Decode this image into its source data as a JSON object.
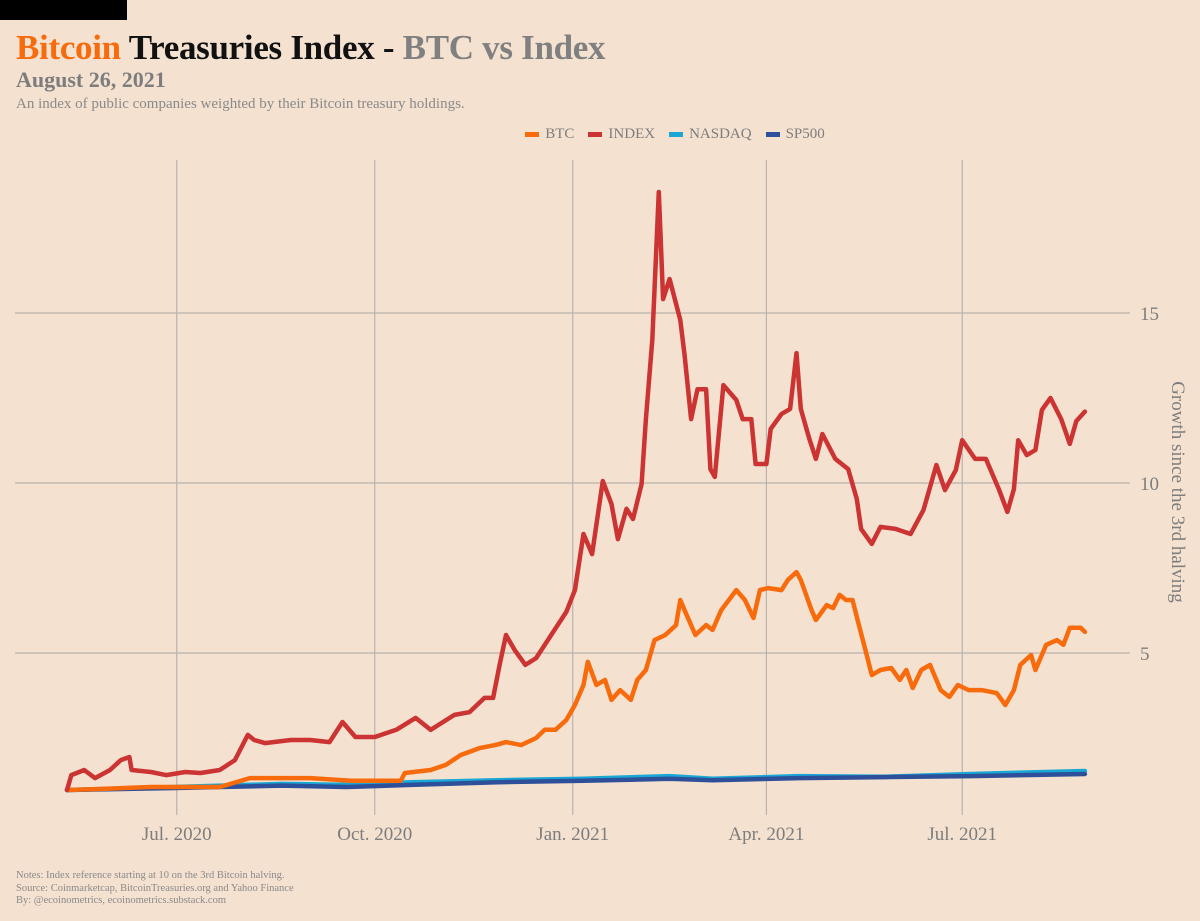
{
  "title": {
    "part1": "Bitcoin",
    "part2": "Treasuries Index -",
    "part3": "BTC vs Index"
  },
  "date": "August 26, 2021",
  "subtitle": "An index of public companies weighted by their Bitcoin treasury holdings.",
  "footer": {
    "notes": "Notes: Index reference starting at 10 on the 3rd Bitcoin halving.",
    "source": "Source: Coinmarketcap, BitcoinTreasuries.org and Yahoo Finance",
    "by": "By: @ecoinometrics, ecoinometrics.substack.com"
  },
  "chart_data": {
    "type": "line",
    "title": "Bitcoin Treasuries Index - BTC vs Index",
    "xlabel": "",
    "ylabel": "Growth since the 3rd halving",
    "x_unit": "days since 3rd halving (2020-05-11)",
    "xlim": [
      -5,
      478
    ],
    "ylim": [
      -0.9,
      19.7
    ],
    "x_ticks": [
      {
        "x": 51,
        "label": "Jul. 2020"
      },
      {
        "x": 143,
        "label": "Oct. 2020"
      },
      {
        "x": 235,
        "label": "Jan. 2021"
      },
      {
        "x": 325,
        "label": "Apr. 2021"
      },
      {
        "x": 416,
        "label": "Jul. 2021"
      }
    ],
    "y_ticks": [
      {
        "y": 5,
        "label": "5"
      },
      {
        "y": 10,
        "label": "10"
      },
      {
        "y": 15,
        "label": "15"
      }
    ],
    "grid": true,
    "legend_position": "top-center",
    "series": [
      {
        "name": "BTC",
        "color": "#f76b0c",
        "x": [
          0,
          15,
          39,
          71,
          85,
          113,
          132,
          155,
          157,
          169,
          176,
          183,
          192,
          199,
          204,
          211,
          218,
          222,
          227,
          232,
          236,
          240,
          242,
          246,
          250,
          253,
          257,
          262,
          265,
          269,
          273,
          278,
          283,
          285,
          287,
          292,
          297,
          300,
          304,
          311,
          315,
          319,
          322,
          326,
          332,
          335,
          339,
          341,
          346,
          348,
          353,
          356,
          359,
          362,
          365,
          368,
          371,
          374,
          378,
          383,
          387,
          390,
          393,
          397,
          401,
          406,
          410,
          414,
          419,
          425,
          432,
          436,
          440,
          443,
          448,
          450,
          455,
          460,
          463,
          466,
          471,
          473
        ],
        "y": [
          0.97,
          1.0,
          1.06,
          1.06,
          1.32,
          1.32,
          1.24,
          1.24,
          1.47,
          1.56,
          1.71,
          2.0,
          2.21,
          2.29,
          2.38,
          2.29,
          2.5,
          2.74,
          2.74,
          3.03,
          3.47,
          4.06,
          4.74,
          4.06,
          4.21,
          3.62,
          3.91,
          3.62,
          4.21,
          4.5,
          5.38,
          5.53,
          5.82,
          6.56,
          6.26,
          5.53,
          5.82,
          5.68,
          6.26,
          6.85,
          6.56,
          6.03,
          6.85,
          6.91,
          6.85,
          7.15,
          7.38,
          7.15,
          6.26,
          5.97,
          6.41,
          6.32,
          6.71,
          6.56,
          6.56,
          5.82,
          5.09,
          4.35,
          4.5,
          4.56,
          4.21,
          4.5,
          3.97,
          4.5,
          4.65,
          3.91,
          3.71,
          4.06,
          3.91,
          3.91,
          3.82,
          3.47,
          3.91,
          4.65,
          4.94,
          4.5,
          5.24,
          5.38,
          5.24,
          5.74,
          5.74,
          5.62
        ]
      },
      {
        "name": "INDEX",
        "color": "#cc3333",
        "x": [
          0,
          2,
          8,
          13,
          20,
          25,
          29,
          30,
          39,
          46,
          55,
          62,
          71,
          78,
          84,
          87,
          92,
          104,
          113,
          122,
          128,
          134,
          143,
          153,
          162,
          169,
          180,
          187,
          194,
          198,
          201,
          204,
          208,
          213,
          218,
          225,
          232,
          236,
          240,
          244,
          249,
          253,
          256,
          260,
          263,
          267,
          269,
          272,
          275,
          277,
          280,
          285,
          287,
          290,
          293,
          297,
          299,
          301,
          305,
          311,
          314,
          318,
          320,
          325,
          327,
          332,
          336,
          339,
          341,
          345,
          348,
          351,
          357,
          363,
          367,
          369,
          374,
          378,
          385,
          392,
          398,
          404,
          408,
          413,
          416,
          422,
          427,
          433,
          437,
          440,
          442,
          446,
          450,
          453,
          457,
          462,
          466,
          469,
          473
        ],
        "y": [
          0.97,
          1.41,
          1.56,
          1.32,
          1.56,
          1.85,
          1.94,
          1.56,
          1.5,
          1.41,
          1.5,
          1.47,
          1.56,
          1.85,
          2.59,
          2.44,
          2.35,
          2.44,
          2.44,
          2.38,
          2.97,
          2.53,
          2.53,
          2.74,
          3.09,
          2.74,
          3.18,
          3.26,
          3.68,
          3.68,
          4.65,
          5.53,
          5.09,
          4.65,
          4.85,
          5.53,
          6.21,
          6.85,
          8.5,
          7.91,
          10.06,
          9.38,
          8.35,
          9.24,
          8.94,
          9.97,
          11.88,
          14.21,
          18.56,
          15.41,
          16.0,
          14.79,
          13.76,
          11.88,
          12.76,
          12.76,
          10.41,
          10.18,
          12.88,
          12.44,
          11.88,
          11.88,
          10.56,
          10.56,
          11.59,
          12.03,
          12.18,
          13.82,
          12.18,
          11.29,
          10.71,
          11.44,
          10.71,
          10.41,
          9.53,
          8.65,
          8.21,
          8.71,
          8.65,
          8.5,
          9.21,
          10.53,
          9.79,
          10.38,
          11.26,
          10.71,
          10.71,
          9.82,
          9.15,
          9.82,
          11.26,
          10.82,
          10.97,
          12.15,
          12.5,
          11.88,
          11.15,
          11.82,
          12.1
        ]
      },
      {
        "name": "NASDAQ",
        "color": "#1aa7d4",
        "x": [
          0,
          50,
          100,
          130,
          160,
          200,
          240,
          280,
          300,
          340,
          380,
          420,
          473
        ],
        "y": [
          0.97,
          1.06,
          1.15,
          1.12,
          1.2,
          1.26,
          1.3,
          1.38,
          1.3,
          1.38,
          1.36,
          1.44,
          1.53
        ]
      },
      {
        "name": "SP500",
        "color": "#2e4f9a",
        "x": [
          0,
          50,
          100,
          130,
          160,
          200,
          240,
          280,
          300,
          340,
          380,
          420,
          473
        ],
        "y": [
          0.97,
          1.03,
          1.1,
          1.06,
          1.12,
          1.2,
          1.24,
          1.3,
          1.26,
          1.32,
          1.35,
          1.38,
          1.44
        ]
      }
    ]
  }
}
